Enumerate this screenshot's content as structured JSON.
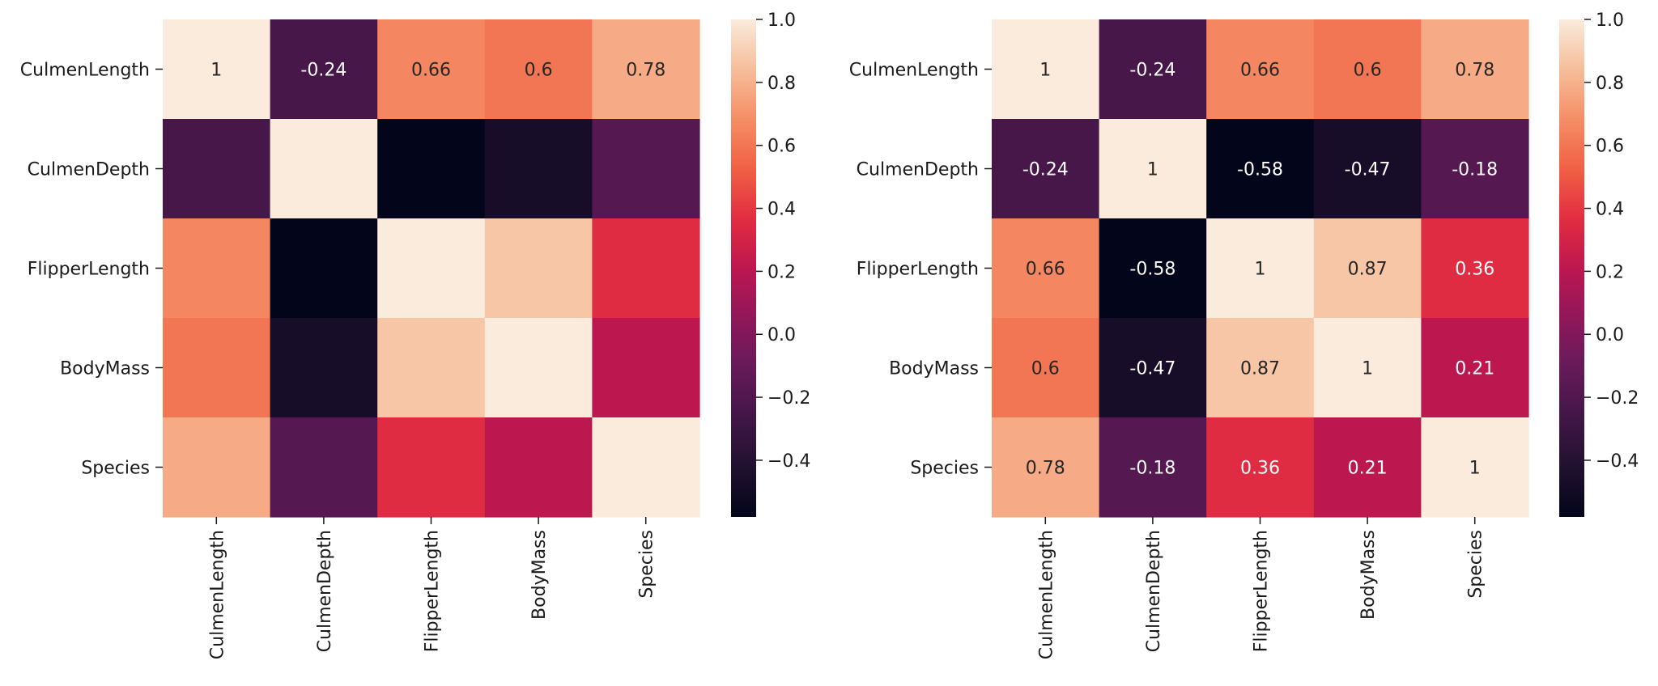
{
  "chart_data": [
    {
      "type": "heatmap",
      "title": "",
      "xlabel": "",
      "ylabel": "",
      "show_annotations": "upper-triangle-first-row-only",
      "categories": [
        "CulmenLength",
        "CulmenDepth",
        "FlipperLength",
        "BodyMass",
        "Species"
      ],
      "x_tick_labels": [
        "CulmenLength",
        "CulmenDepth",
        "FlipperLength",
        "BodyMass",
        "Species"
      ],
      "y_tick_labels": [
        "CulmenLength",
        "CulmenDepth",
        "FlipperLength",
        "BodyMass",
        "Species"
      ],
      "annotation_labels": [
        [
          "1",
          "-0.24",
          "0.66",
          "0.6",
          "0.78"
        ],
        [
          null,
          null,
          null,
          null,
          null
        ],
        [
          null,
          null,
          null,
          null,
          null
        ],
        [
          null,
          null,
          null,
          null,
          null
        ],
        [
          null,
          null,
          null,
          null,
          null
        ]
      ],
      "values": [
        [
          1.0,
          -0.24,
          0.66,
          0.6,
          0.78
        ],
        [
          -0.24,
          1.0,
          -0.58,
          -0.47,
          -0.18
        ],
        [
          0.66,
          -0.58,
          1.0,
          0.87,
          0.36
        ],
        [
          0.6,
          -0.47,
          0.87,
          1.0,
          0.21
        ],
        [
          0.78,
          -0.18,
          0.36,
          0.21,
          1.0
        ]
      ],
      "colormap": "rocket",
      "vmin": -0.58,
      "vmax": 1.0,
      "colorbar_ticks": [
        "1.0",
        "0.8",
        "0.6",
        "0.4",
        "0.2",
        "0.0",
        "−0.2",
        "−0.4"
      ],
      "colorbar_tick_values": [
        1.0,
        0.8,
        0.6,
        0.4,
        0.2,
        0.0,
        -0.2,
        -0.4
      ]
    },
    {
      "type": "heatmap",
      "title": "",
      "xlabel": "",
      "ylabel": "",
      "show_annotations": "all",
      "categories": [
        "CulmenLength",
        "CulmenDepth",
        "FlipperLength",
        "BodyMass",
        "Species"
      ],
      "x_tick_labels": [
        "CulmenLength",
        "CulmenDepth",
        "FlipperLength",
        "BodyMass",
        "Species"
      ],
      "y_tick_labels": [
        "CulmenLength",
        "CulmenDepth",
        "FlipperLength",
        "BodyMass",
        "Species"
      ],
      "annotation_labels": [
        [
          "1",
          "-0.24",
          "0.66",
          "0.6",
          "0.78"
        ],
        [
          "-0.24",
          "1",
          "-0.58",
          "-0.47",
          "-0.18"
        ],
        [
          "0.66",
          "-0.58",
          "1",
          "0.87",
          "0.36"
        ],
        [
          "0.6",
          "-0.47",
          "0.87",
          "1",
          "0.21"
        ],
        [
          "0.78",
          "-0.18",
          "0.36",
          "0.21",
          "1"
        ]
      ],
      "values": [
        [
          1.0,
          -0.24,
          0.66,
          0.6,
          0.78
        ],
        [
          -0.24,
          1.0,
          -0.58,
          -0.47,
          -0.18
        ],
        [
          0.66,
          -0.58,
          1.0,
          0.87,
          0.36
        ],
        [
          0.6,
          -0.47,
          0.87,
          1.0,
          0.21
        ],
        [
          0.78,
          -0.18,
          0.36,
          0.21,
          1.0
        ]
      ],
      "colormap": "rocket",
      "vmin": -0.58,
      "vmax": 1.0,
      "colorbar_ticks": [
        "1.0",
        "0.8",
        "0.6",
        "0.4",
        "0.2",
        "0.0",
        "−0.2",
        "−0.4"
      ],
      "colorbar_tick_values": [
        1.0,
        0.8,
        0.6,
        0.4,
        0.2,
        0.0,
        -0.2,
        -0.4
      ]
    }
  ],
  "colors": {
    "text": "#1a1a1a",
    "annot_dark": "#262626",
    "annot_light": "#ffffff"
  }
}
